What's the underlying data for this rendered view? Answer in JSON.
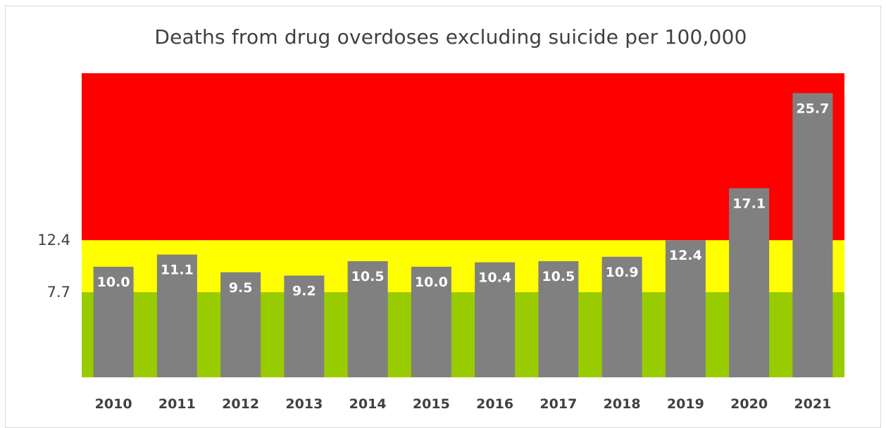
{
  "chart_data": {
    "type": "bar",
    "title": "Deaths from drug overdoses excluding suicide per 100,000",
    "xlabel": "",
    "ylabel": "",
    "categories": [
      "2010",
      "2011",
      "2012",
      "2013",
      "2014",
      "2015",
      "2016",
      "2017",
      "2018",
      "2019",
      "2020",
      "2021"
    ],
    "values": [
      10.0,
      11.1,
      9.5,
      9.2,
      10.5,
      10.0,
      10.4,
      10.5,
      10.9,
      12.4,
      17.1,
      25.7
    ],
    "value_labels": [
      "10.0",
      "11.1",
      "9.5",
      "9.2",
      "10.5",
      "10.0",
      "10.4",
      "10.5",
      "10.9",
      "12.4",
      "17.1",
      "25.7"
    ],
    "ylim": [
      0,
      27.5
    ],
    "y_ticks": [
      {
        "value": 7.7,
        "label": "7.7"
      },
      {
        "value": 12.4,
        "label": "12.4"
      }
    ],
    "bands": [
      {
        "from": 0,
        "to": 7.7,
        "color": "#99cc00"
      },
      {
        "from": 7.7,
        "to": 12.4,
        "color": "#ffff00"
      },
      {
        "from": 12.4,
        "to": 27.5,
        "color": "#ff0000"
      }
    ],
    "bar_color": "#808080",
    "grid": false,
    "legend": "none"
  }
}
